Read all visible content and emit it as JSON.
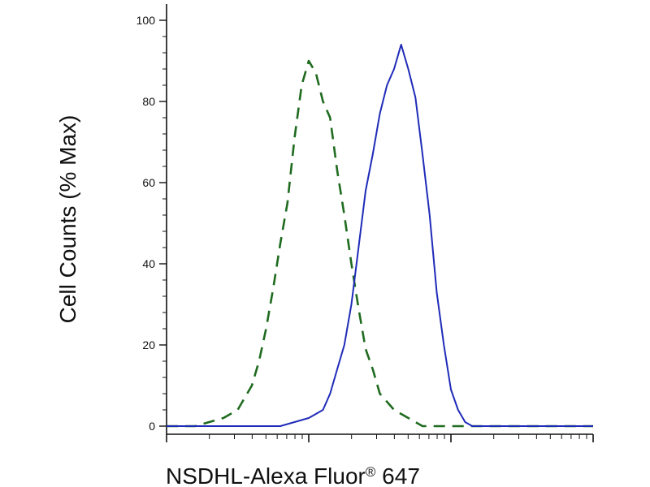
{
  "chart_data": {
    "type": "line",
    "title": "",
    "xlabel": "NSDHL-Alexa Fluor",
    "xlabel_superscript": "®",
    "xlabel_suffix": " 647",
    "ylabel": "Cell Counts (% Max)",
    "xscale": "log",
    "xlim": [
      0,
      3
    ],
    "ylim": [
      0,
      100
    ],
    "yticks": [
      0,
      20,
      40,
      60,
      80,
      100
    ],
    "ytick_labels": [
      "0",
      "20",
      "40",
      "60",
      "80",
      "100"
    ],
    "grid": false,
    "legend": false,
    "series": [
      {
        "style": "dashed",
        "color": "#1f6b1f",
        "x": [
          0.0,
          0.1,
          0.2,
          0.3,
          0.4,
          0.5,
          0.6,
          0.65,
          0.7,
          0.75,
          0.8,
          0.85,
          0.9,
          0.95,
          1.0,
          1.05,
          1.1,
          1.15,
          1.2,
          1.25,
          1.3,
          1.35,
          1.4,
          1.45,
          1.5,
          1.55,
          1.6,
          1.7,
          1.8,
          1.9,
          2.0,
          2.2,
          2.4,
          2.6,
          2.8,
          3.0
        ],
        "values": [
          0,
          0,
          0,
          1,
          2,
          4,
          10,
          16,
          24,
          34,
          45,
          55,
          71,
          84,
          90,
          87,
          80,
          76,
          63,
          52,
          40,
          29,
          19,
          14,
          8,
          6,
          4,
          2,
          0,
          0,
          0,
          0,
          0,
          0,
          0,
          0
        ]
      },
      {
        "style": "solid",
        "color": "#1f2bb8",
        "x": [
          0.0,
          0.3,
          0.5,
          0.7,
          0.8,
          0.9,
          1.0,
          1.05,
          1.1,
          1.15,
          1.2,
          1.25,
          1.3,
          1.35,
          1.4,
          1.45,
          1.5,
          1.55,
          1.6,
          1.65,
          1.7,
          1.75,
          1.8,
          1.85,
          1.9,
          1.95,
          2.0,
          2.05,
          2.1,
          2.15,
          2.2,
          2.3,
          2.5,
          2.7,
          3.0
        ],
        "values": [
          0,
          0,
          0,
          0,
          0,
          1,
          2,
          3,
          4,
          8,
          14,
          20,
          30,
          44,
          58,
          67,
          77,
          84,
          88,
          94,
          88,
          81,
          67,
          52,
          33,
          20,
          9,
          4,
          1,
          0,
          0,
          0,
          0,
          0,
          0
        ]
      }
    ]
  }
}
